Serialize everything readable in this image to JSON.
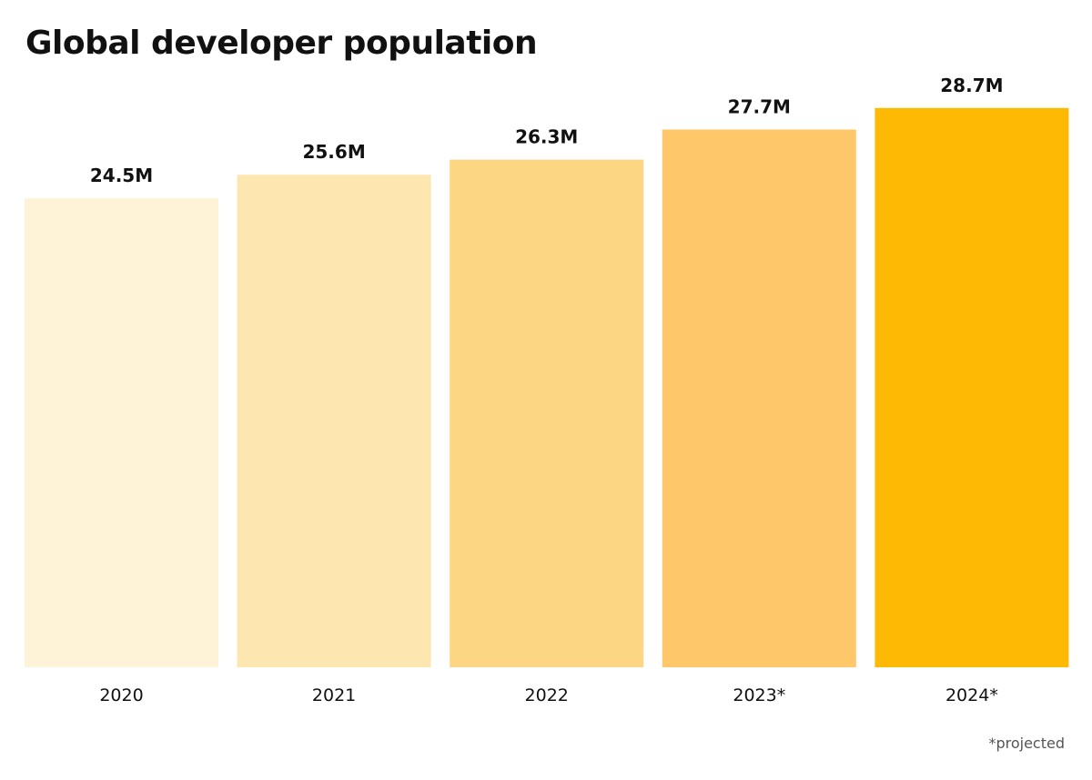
{
  "chart_data": {
    "type": "bar",
    "title": "Global developer population",
    "categories": [
      "2020",
      "2021",
      "2022",
      "2023*",
      "2024*"
    ],
    "values": [
      24.5,
      25.6,
      26.3,
      27.7,
      28.7
    ],
    "value_labels": [
      "24.5M",
      "25.6M",
      "26.3M",
      "27.7M",
      "28.7M"
    ],
    "colors": [
      "#FEF3D6",
      "#FDE6AF",
      "#FDD684",
      "#FDC76A",
      "#FDB904"
    ],
    "unit": "M",
    "footnote": "*projected",
    "grid": false,
    "legend": "none"
  }
}
